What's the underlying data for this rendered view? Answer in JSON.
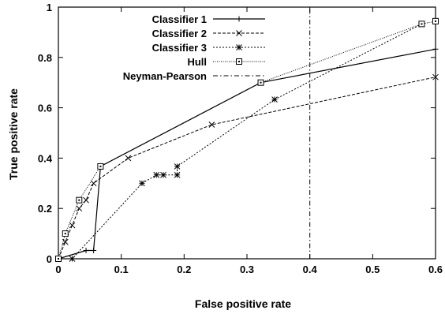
{
  "chart_data": {
    "type": "line",
    "title": "",
    "xlabel": "False positive rate",
    "ylabel": "True positive rate",
    "xlim": [
      0,
      0.6
    ],
    "ylim": [
      0,
      1
    ],
    "x_ticks": [
      "0",
      "0.1",
      "0.2",
      "0.3",
      "0.4",
      "0.5",
      "0.6"
    ],
    "y_ticks": [
      "0",
      "0.2",
      "0.4",
      "0.6",
      "0.8",
      "1"
    ],
    "grid": false,
    "legend_position": "top-left",
    "series": [
      {
        "name": "Classifier 1",
        "style": "solid",
        "marker": "plus",
        "color": "#000000",
        "x": [
          0,
          0.044,
          0.056,
          0.067,
          0.322,
          0.6
        ],
        "y": [
          0,
          0.033,
          0.033,
          0.367,
          0.7,
          0.833
        ]
      },
      {
        "name": "Classifier 2",
        "style": "dashed",
        "marker": "x",
        "color": "#000000",
        "x": [
          0,
          0.011,
          0.022,
          0.033,
          0.044,
          0.056,
          0.111,
          0.244,
          0.6
        ],
        "y": [
          0,
          0.067,
          0.133,
          0.2,
          0.233,
          0.3,
          0.4,
          0.533,
          0.722
        ]
      },
      {
        "name": "Classifier 3",
        "style": "dotted",
        "marker": "star",
        "color": "#000000",
        "x": [
          0,
          0.022,
          0.133,
          0.156,
          0.167,
          0.189,
          0.189,
          0.344,
          0.578
        ],
        "y": [
          0,
          0,
          0.3,
          0.333,
          0.333,
          0.333,
          0.367,
          0.633,
          0.933
        ]
      },
      {
        "name": "Hull",
        "style": "fine-dotted",
        "marker": "square",
        "color": "#000000",
        "x": [
          0,
          0.011,
          0.033,
          0.067,
          0.322,
          0.578,
          0.6
        ],
        "y": [
          0,
          0.1,
          0.233,
          0.367,
          0.7,
          0.933,
          0.944
        ]
      },
      {
        "name": "Neyman-Pearson",
        "style": "dash-dot",
        "marker": "none",
        "color": "#000000",
        "x": [
          0.4,
          0.4
        ],
        "y": [
          0,
          1
        ]
      }
    ]
  }
}
